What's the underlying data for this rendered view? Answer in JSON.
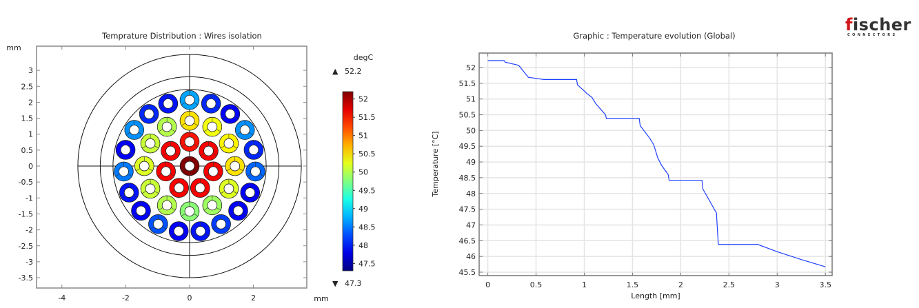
{
  "logo": {
    "brand_first": "f",
    "brand_rest": "ischer",
    "sub": "CONNECTORS"
  },
  "chart_data": [
    {
      "type": "heatmap",
      "title": "Temprature Distribution : Wires isolation",
      "xunit": "mm",
      "yunit": "mm",
      "xlim": [
        -4.7,
        4.2
      ],
      "ylim": [
        -3.8,
        3.7
      ],
      "xticks": [
        -4,
        -2,
        0,
        2
      ],
      "yticks": [
        -3.5,
        -3,
        -2.5,
        -2,
        -1.5,
        -1,
        -0.5,
        0,
        0.5,
        1,
        1.5,
        2,
        2.5,
        3
      ],
      "circles_mm": [
        3.5,
        2.8,
        2.4
      ],
      "wire_outer_radius_mm": 0.3,
      "wire_inner_radius_mm": 0.15,
      "rings": [
        {
          "radius_mm": 0,
          "count": 1,
          "temps": [
            52.2
          ]
        },
        {
          "radius_mm": 0.76,
          "count": 7,
          "temps": [
            51.5,
            51.6,
            51.6,
            51.6,
            51.6,
            51.6,
            51.6
          ]
        },
        {
          "radius_mm": 1.42,
          "count": 12,
          "temps": [
            50.5,
            50.3,
            50.4,
            50.5,
            50.2,
            49.9,
            49.8,
            50.0,
            50.1,
            50.2,
            50.1,
            50.0
          ]
        },
        {
          "radius_mm": 2.07,
          "count": 19,
          "temps": [
            48.7,
            48.1,
            47.9,
            48.6,
            48.1,
            48.4,
            47.9,
            47.9,
            48.2,
            48.0,
            47.9,
            48.3,
            47.9,
            48.0,
            48.5,
            47.9,
            48.6,
            48.1,
            48.0
          ]
        }
      ],
      "colorbar": {
        "unit": "degC",
        "max": 52.2,
        "min": 47.3,
        "max_label": "52.2",
        "min_label": "47.3",
        "ticks": [
          "52",
          "51.5",
          "51",
          "50.5",
          "50",
          "49.5",
          "49",
          "48.5",
          "48",
          "47.5"
        ]
      }
    },
    {
      "type": "line",
      "title": "Graphic : Temperature evolution (Global)",
      "xlabel": "Length [mm]",
      "ylabel": "Temperature [°C]",
      "xlim": [
        -0.09,
        3.57
      ],
      "ylim": [
        45.39,
        52.46
      ],
      "xticks": [
        "0",
        "0.5",
        "1",
        "1.5",
        "2",
        "2.5",
        "3",
        "3.5"
      ],
      "yticks": [
        "45.5",
        "46",
        "46.5",
        "47",
        "47.5",
        "48",
        "48.5",
        "49",
        "49.5",
        "50",
        "50.5",
        "51",
        "51.5",
        "52"
      ],
      "grid": true,
      "color": "#1f3fff",
      "x": [
        0,
        0.17,
        0.18,
        0.32,
        0.42,
        0.58,
        0.92,
        0.93,
        1.03,
        1.08,
        1.12,
        1.22,
        1.23,
        1.57,
        1.58,
        1.68,
        1.72,
        1.76,
        1.8,
        1.87,
        1.88,
        2.22,
        2.23,
        2.37,
        2.39,
        2.8,
        3.0,
        3.25,
        3.5
      ],
      "y": [
        52.22,
        52.22,
        52.17,
        52.07,
        51.69,
        51.62,
        51.62,
        51.45,
        51.17,
        51.05,
        50.85,
        50.5,
        50.38,
        50.38,
        50.15,
        49.75,
        49.55,
        49.15,
        48.9,
        48.6,
        48.42,
        48.42,
        48.14,
        47.38,
        46.38,
        46.38,
        46.15,
        45.9,
        45.67
      ]
    }
  ]
}
